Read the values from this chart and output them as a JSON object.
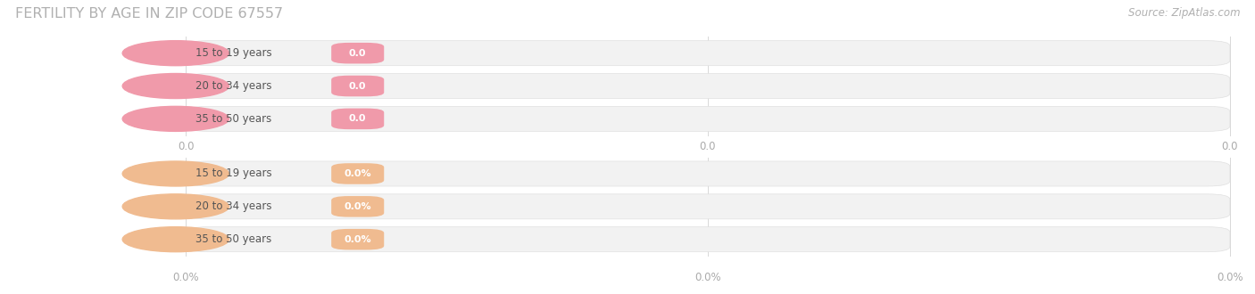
{
  "title": "FERTILITY BY AGE IN ZIP CODE 67557",
  "source": "Source: ZipAtlas.com",
  "top_group": {
    "labels": [
      "15 to 19 years",
      "20 to 34 years",
      "35 to 50 years"
    ],
    "values": [
      0.0,
      0.0,
      0.0
    ],
    "bar_color": "#f09aaa",
    "icon_color": "#f09aaa",
    "value_format": "0.0",
    "tick_labels": [
      "0.0",
      "0.0",
      "0.0"
    ]
  },
  "bottom_group": {
    "labels": [
      "15 to 19 years",
      "20 to 34 years",
      "35 to 50 years"
    ],
    "values": [
      0.0,
      0.0,
      0.0
    ],
    "bar_color": "#f0bb90",
    "icon_color": "#f0bb90",
    "value_format": "0.0%",
    "tick_labels": [
      "0.0%",
      "0.0%",
      "0.0%"
    ]
  },
  "background_color": "#ffffff",
  "title_color": "#b0b0b0",
  "title_fontsize": 11.5,
  "label_fontsize": 8.5,
  "value_fontsize": 8,
  "tick_fontsize": 8.5,
  "source_fontsize": 8.5,
  "bar_bg_color": "#f2f2f2",
  "bar_border_color": "#e0e0e0",
  "grid_color": "#d8d8d8"
}
